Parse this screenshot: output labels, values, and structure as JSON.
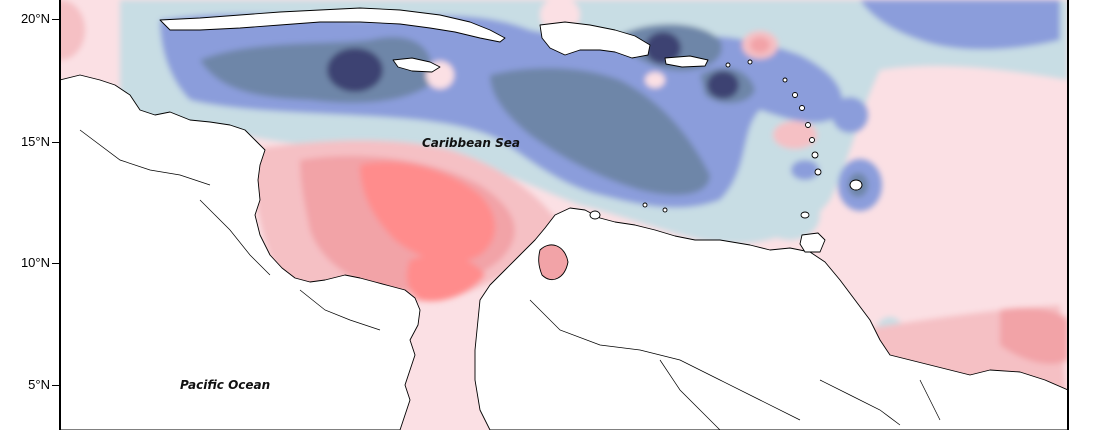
{
  "map": {
    "y_axis": {
      "unit": "°N",
      "ticks": [
        {
          "value": 20,
          "label": "20°N"
        },
        {
          "value": 15,
          "label": "15°N"
        },
        {
          "value": 10,
          "label": "10°N"
        },
        {
          "value": 5,
          "label": "5°N"
        }
      ]
    },
    "labels": {
      "caribbean": "Caribbean Sea",
      "pacific": "Pacific Ocean"
    },
    "colors": {
      "dark_blue": "#3c4272",
      "slate_blue": "#6e86a8",
      "mid_blue": "#8b9ddb",
      "light_blue": "#c8dde4",
      "pale_pink": "#fbe0e4",
      "light_pink": "#f5c0c4",
      "mid_pink": "#f2a3a7",
      "red_pink": "#ff8c8c",
      "land": "#ffffff",
      "border": "#000000"
    }
  }
}
